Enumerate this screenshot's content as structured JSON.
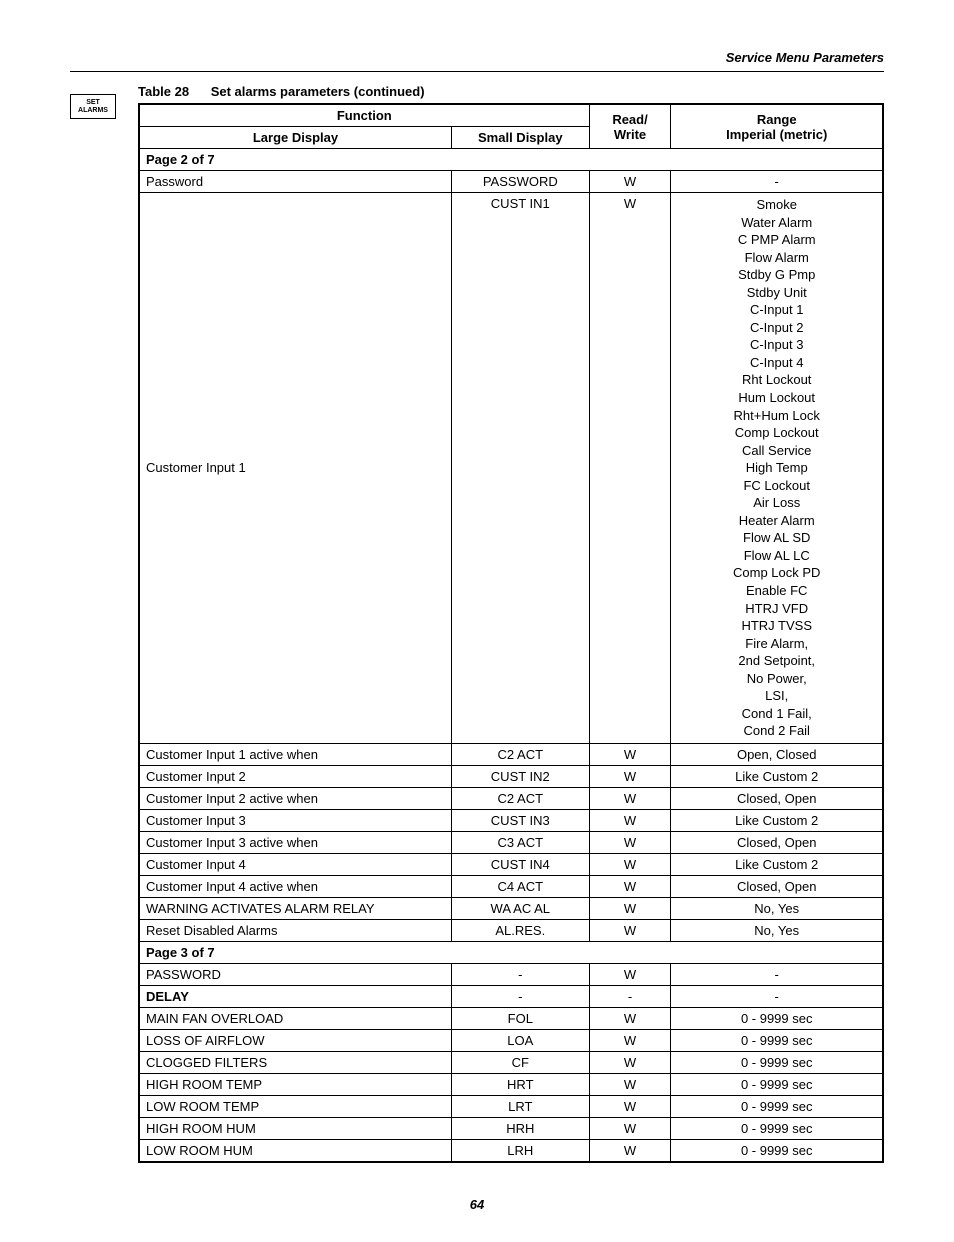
{
  "header": "Service Menu Parameters",
  "side_tab": {
    "line1": "SET",
    "line2": "ALARMS"
  },
  "title": {
    "num": "Table 28",
    "caption": "Set alarms parameters (continued)"
  },
  "table_headers": {
    "function": "Function",
    "large_display": "Large Display",
    "small_display": "Small Display",
    "read_write_1": "Read/",
    "read_write_2": "Write",
    "range_1": "Range",
    "range_2": "Imperial (metric)"
  },
  "rows": [
    {
      "type": "page_sep",
      "large": "Page 2 of 7"
    },
    {
      "type": "data",
      "large": "Password",
      "small": "PASSWORD",
      "rw": "W",
      "range": "-"
    },
    {
      "type": "data",
      "large": "Customer Input 1",
      "small": "CUST IN1",
      "rw": "W",
      "range_lines": [
        "Smoke",
        "Water Alarm",
        "C PMP Alarm",
        "Flow Alarm",
        "Stdby G Pmp",
        "Stdby Unit",
        "C-Input 1",
        "C-Input 2",
        "C-Input 3",
        "C-Input 4",
        "Rht Lockout",
        "Hum Lockout",
        "Rht+Hum Lock",
        "Comp Lockout",
        "Call Service",
        "High Temp",
        "FC Lockout",
        "Air Loss",
        "Heater Alarm",
        "Flow AL SD",
        "Flow AL LC",
        "Comp Lock PD",
        "Enable FC",
        "HTRJ VFD",
        "HTRJ TVSS",
        "Fire Alarm,",
        "2nd Setpoint,",
        "No Power,",
        "LSI,",
        "Cond 1 Fail,",
        "Cond 2 Fail"
      ],
      "valign_top": true
    },
    {
      "type": "data",
      "large": "Customer Input 1 active when",
      "small": "C2 ACT",
      "rw": "W",
      "range": "Open, Closed"
    },
    {
      "type": "data",
      "large": "Customer Input 2",
      "small": "CUST IN2",
      "rw": "W",
      "range": "Like Custom 2"
    },
    {
      "type": "data",
      "large": "Customer Input 2 active when",
      "small": "C2 ACT",
      "rw": "W",
      "range": "Closed, Open"
    },
    {
      "type": "data",
      "large": "Customer Input 3",
      "small": "CUST IN3",
      "rw": "W",
      "range": "Like Custom 2"
    },
    {
      "type": "data",
      "large": "Customer Input 3 active when",
      "small": "C3 ACT",
      "rw": "W",
      "range": "Closed, Open"
    },
    {
      "type": "data",
      "large": "Customer Input 4",
      "small": "CUST IN4",
      "rw": "W",
      "range": "Like Custom 2"
    },
    {
      "type": "data",
      "large": "Customer Input 4 active when",
      "small": "C4 ACT",
      "rw": "W",
      "range": "Closed, Open"
    },
    {
      "type": "data",
      "large": "WARNING ACTIVATES ALARM RELAY",
      "small": "WA AC AL",
      "rw": "W",
      "range": "No, Yes"
    },
    {
      "type": "data",
      "large": "Reset Disabled Alarms",
      "small": "AL.RES.",
      "rw": "W",
      "range": "No, Yes"
    },
    {
      "type": "page_sep",
      "large": "Page 3 of 7"
    },
    {
      "type": "data",
      "large": "PASSWORD",
      "small": "-",
      "rw": "W",
      "range": "-"
    },
    {
      "type": "data",
      "large": "DELAY",
      "large_bold": true,
      "small": "-",
      "rw": "-",
      "range": "-"
    },
    {
      "type": "data",
      "large": "MAIN FAN OVERLOAD",
      "small": "FOL",
      "rw": "W",
      "range": "0 - 9999 sec"
    },
    {
      "type": "data",
      "large": "LOSS OF AIRFLOW",
      "small": "LOA",
      "rw": "W",
      "range": "0 - 9999 sec"
    },
    {
      "type": "data",
      "large": "CLOGGED FILTERS",
      "small": "CF",
      "rw": "W",
      "range": "0 - 9999 sec"
    },
    {
      "type": "data",
      "large": "HIGH ROOM TEMP",
      "small": "HRT",
      "rw": "W",
      "range": "0 - 9999 sec"
    },
    {
      "type": "data",
      "large": "LOW ROOM TEMP",
      "small": "LRT",
      "rw": "W",
      "range": "0 - 9999 sec"
    },
    {
      "type": "data",
      "large": "HIGH ROOM HUM",
      "small": "HRH",
      "rw": "W",
      "range": "0 - 9999 sec"
    },
    {
      "type": "data",
      "large": "LOW ROOM HUM",
      "small": "LRH",
      "rw": "W",
      "range": "0 - 9999 sec"
    }
  ],
  "page_number": "64"
}
